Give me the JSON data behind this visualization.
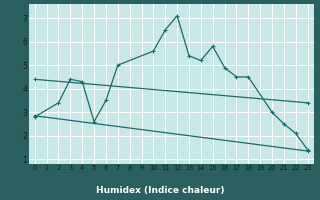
{
  "xlabel": "Humidex (Indice chaleur)",
  "bg_color": "#c8e8e8",
  "grid_color": "#ffffff",
  "line_color": "#1a6b6b",
  "xlabel_bg": "#2a6060",
  "xlabel_fg": "#ffffff",
  "xlim": [
    -0.5,
    23.5
  ],
  "ylim": [
    0.8,
    7.6
  ],
  "xticks": [
    0,
    1,
    2,
    3,
    4,
    5,
    6,
    7,
    8,
    9,
    10,
    11,
    12,
    13,
    14,
    15,
    16,
    17,
    18,
    19,
    20,
    21,
    22,
    23
  ],
  "yticks": [
    1,
    2,
    3,
    4,
    5,
    6,
    7
  ],
  "series1_x": [
    0,
    2,
    3,
    4,
    5,
    6,
    7,
    10,
    11,
    12,
    13,
    14,
    15,
    16,
    17,
    18,
    20,
    21,
    22,
    23
  ],
  "series1_y": [
    2.8,
    3.4,
    4.4,
    4.3,
    2.6,
    3.5,
    5.0,
    5.6,
    6.5,
    7.1,
    5.4,
    5.2,
    5.8,
    4.9,
    4.5,
    4.5,
    3.0,
    2.5,
    2.1,
    1.4
  ],
  "series2_x": [
    0,
    23
  ],
  "series2_y": [
    4.4,
    3.4
  ],
  "series3_x": [
    0,
    23
  ],
  "series3_y": [
    2.85,
    1.35
  ]
}
